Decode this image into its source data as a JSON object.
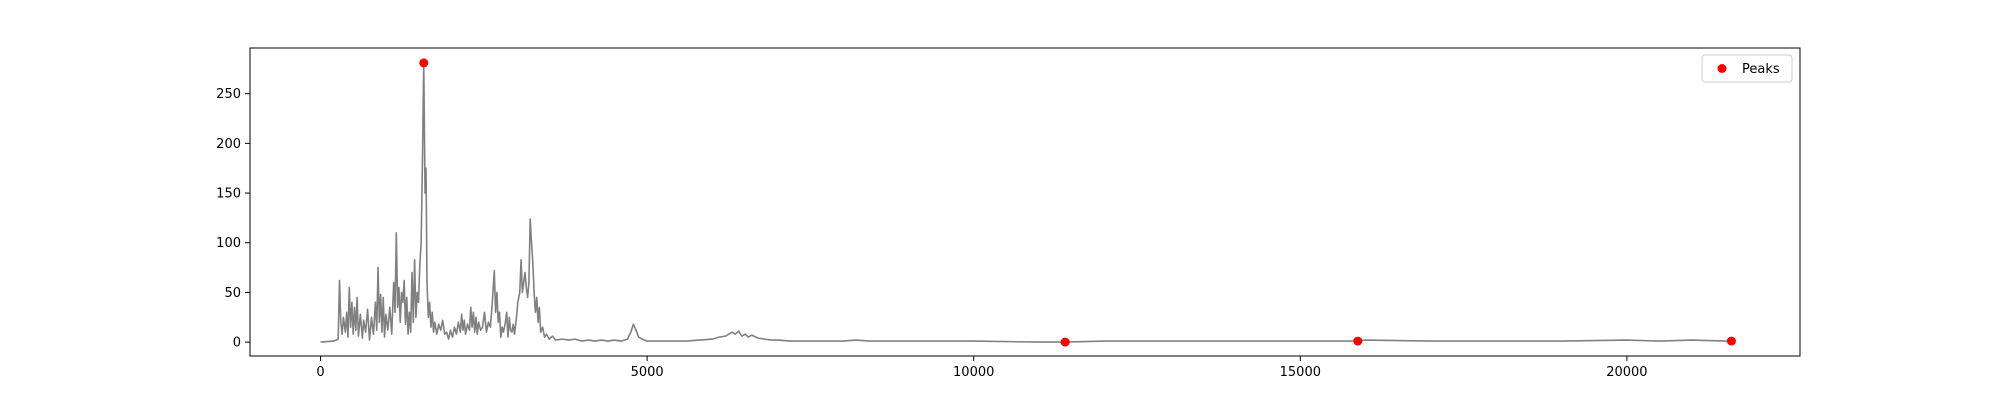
{
  "chart_data": {
    "type": "line",
    "title": "",
    "xlabel": "",
    "ylabel": "",
    "xlim": [
      -1080,
      22650
    ],
    "ylim": [
      -14,
      296
    ],
    "x_ticks": [
      {
        "value": 0,
        "label": "0"
      },
      {
        "value": 5000,
        "label": "5000"
      },
      {
        "value": 10000,
        "label": "10000"
      },
      {
        "value": 15000,
        "label": "15000"
      },
      {
        "value": 20000,
        "label": "20000"
      }
    ],
    "y_ticks": [
      {
        "value": 0,
        "label": "0"
      },
      {
        "value": 50,
        "label": "50"
      },
      {
        "value": 100,
        "label": "100"
      },
      {
        "value": 150,
        "label": "150"
      },
      {
        "value": 200,
        "label": "200"
      },
      {
        "value": 250,
        "label": "250"
      }
    ],
    "grid": false,
    "legend": {
      "position": "top-right",
      "entries": [
        "Peaks"
      ]
    },
    "series": [
      {
        "style": "line",
        "color": "#808080",
        "points": [
          [
            0,
            0
          ],
          [
            200,
            1
          ],
          [
            270,
            3
          ],
          [
            290,
            62
          ],
          [
            310,
            20
          ],
          [
            330,
            8
          ],
          [
            350,
            25
          ],
          [
            380,
            10
          ],
          [
            400,
            30
          ],
          [
            420,
            5
          ],
          [
            440,
            55
          ],
          [
            460,
            15
          ],
          [
            480,
            40
          ],
          [
            500,
            8
          ],
          [
            520,
            35
          ],
          [
            540,
            12
          ],
          [
            560,
            45
          ],
          [
            580,
            6
          ],
          [
            610,
            28
          ],
          [
            640,
            4
          ],
          [
            660,
            22
          ],
          [
            690,
            10
          ],
          [
            720,
            33
          ],
          [
            750,
            2
          ],
          [
            780,
            25
          ],
          [
            810,
            8
          ],
          [
            840,
            40
          ],
          [
            860,
            12
          ],
          [
            880,
            75
          ],
          [
            900,
            20
          ],
          [
            920,
            48
          ],
          [
            940,
            10
          ],
          [
            960,
            45
          ],
          [
            980,
            5
          ],
          [
            1000,
            28
          ],
          [
            1030,
            12
          ],
          [
            1060,
            35
          ],
          [
            1090,
            8
          ],
          [
            1120,
            60
          ],
          [
            1140,
            30
          ],
          [
            1160,
            110
          ],
          [
            1180,
            35
          ],
          [
            1200,
            55
          ],
          [
            1220,
            20
          ],
          [
            1240,
            50
          ],
          [
            1260,
            40
          ],
          [
            1280,
            62
          ],
          [
            1300,
            18
          ],
          [
            1320,
            45
          ],
          [
            1340,
            8
          ],
          [
            1360,
            30
          ],
          [
            1380,
            10
          ],
          [
            1400,
            70
          ],
          [
            1420,
            20
          ],
          [
            1440,
            83
          ],
          [
            1460,
            25
          ],
          [
            1480,
            50
          ],
          [
            1500,
            40
          ],
          [
            1520,
            78
          ],
          [
            1540,
            100
          ],
          [
            1560,
            180
          ],
          [
            1580,
            281
          ],
          [
            1600,
            150
          ],
          [
            1615,
            175
          ],
          [
            1630,
            60
          ],
          [
            1650,
            25
          ],
          [
            1670,
            40
          ],
          [
            1690,
            15
          ],
          [
            1710,
            30
          ],
          [
            1730,
            10
          ],
          [
            1750,
            20
          ],
          [
            1780,
            8
          ],
          [
            1810,
            18
          ],
          [
            1840,
            12
          ],
          [
            1870,
            22
          ],
          [
            1900,
            8
          ],
          [
            1930,
            10
          ],
          [
            1960,
            3
          ],
          [
            1990,
            12
          ],
          [
            2020,
            5
          ],
          [
            2050,
            15
          ],
          [
            2080,
            8
          ],
          [
            2110,
            20
          ],
          [
            2140,
            10
          ],
          [
            2160,
            28
          ],
          [
            2180,
            12
          ],
          [
            2200,
            22
          ],
          [
            2220,
            8
          ],
          [
            2250,
            18
          ],
          [
            2280,
            12
          ],
          [
            2300,
            35
          ],
          [
            2320,
            15
          ],
          [
            2340,
            30
          ],
          [
            2360,
            10
          ],
          [
            2380,
            25
          ],
          [
            2400,
            8
          ],
          [
            2420,
            20
          ],
          [
            2450,
            12
          ],
          [
            2480,
            15
          ],
          [
            2510,
            30
          ],
          [
            2540,
            10
          ],
          [
            2570,
            20
          ],
          [
            2600,
            15
          ],
          [
            2630,
            40
          ],
          [
            2660,
            72
          ],
          [
            2680,
            30
          ],
          [
            2700,
            50
          ],
          [
            2720,
            20
          ],
          [
            2740,
            30
          ],
          [
            2760,
            5
          ],
          [
            2780,
            15
          ],
          [
            2800,
            10
          ],
          [
            2830,
            20
          ],
          [
            2850,
            30
          ],
          [
            2870,
            5
          ],
          [
            2890,
            25
          ],
          [
            2910,
            12
          ],
          [
            2930,
            10
          ],
          [
            2950,
            18
          ],
          [
            2970,
            8
          ],
          [
            3000,
            25
          ],
          [
            3020,
            40
          ],
          [
            3050,
            50
          ],
          [
            3070,
            83
          ],
          [
            3090,
            50
          ],
          [
            3110,
            60
          ],
          [
            3130,
            70
          ],
          [
            3150,
            55
          ],
          [
            3170,
            45
          ],
          [
            3190,
            60
          ],
          [
            3210,
            124
          ],
          [
            3230,
            100
          ],
          [
            3250,
            80
          ],
          [
            3270,
            50
          ],
          [
            3290,
            30
          ],
          [
            3310,
            45
          ],
          [
            3330,
            20
          ],
          [
            3350,
            35
          ],
          [
            3370,
            10
          ],
          [
            3400,
            15
          ],
          [
            3430,
            5
          ],
          [
            3460,
            8
          ],
          [
            3500,
            3
          ],
          [
            3550,
            6
          ],
          [
            3600,
            2
          ],
          [
            3700,
            3
          ],
          [
            3800,
            2
          ],
          [
            3900,
            3
          ],
          [
            4000,
            1
          ],
          [
            4100,
            2
          ],
          [
            4200,
            1
          ],
          [
            4300,
            2
          ],
          [
            4400,
            1
          ],
          [
            4500,
            2
          ],
          [
            4600,
            1
          ],
          [
            4700,
            3
          ],
          [
            4750,
            10
          ],
          [
            4790,
            18
          ],
          [
            4830,
            12
          ],
          [
            4870,
            5
          ],
          [
            4920,
            3
          ],
          [
            5000,
            1
          ],
          [
            5200,
            1
          ],
          [
            5400,
            1
          ],
          [
            5600,
            1
          ],
          [
            5800,
            2
          ],
          [
            6000,
            3
          ],
          [
            6100,
            5
          ],
          [
            6200,
            6
          ],
          [
            6300,
            10
          ],
          [
            6350,
            8
          ],
          [
            6400,
            11
          ],
          [
            6450,
            6
          ],
          [
            6500,
            8
          ],
          [
            6550,
            5
          ],
          [
            6600,
            7
          ],
          [
            6700,
            4
          ],
          [
            6800,
            3
          ],
          [
            6900,
            2
          ],
          [
            7000,
            2
          ],
          [
            7200,
            1
          ],
          [
            7500,
            1
          ],
          [
            8000,
            1
          ],
          [
            8200,
            2
          ],
          [
            8400,
            1
          ],
          [
            9000,
            1
          ],
          [
            10000,
            1
          ],
          [
            11000,
            0
          ],
          [
            11400,
            0
          ],
          [
            12000,
            1
          ],
          [
            13000,
            1
          ],
          [
            14000,
            1
          ],
          [
            15000,
            1
          ],
          [
            15600,
            1
          ],
          [
            15880,
            1
          ],
          [
            16000,
            2
          ],
          [
            17000,
            1
          ],
          [
            18000,
            1
          ],
          [
            19000,
            1
          ],
          [
            20000,
            2
          ],
          [
            20500,
            1
          ],
          [
            21000,
            2
          ],
          [
            21500,
            1
          ],
          [
            21600,
            1
          ]
        ]
      },
      {
        "name": "Peaks",
        "style": "scatter",
        "color": "#ff0000",
        "points": [
          [
            1580,
            281
          ],
          [
            11400,
            0
          ],
          [
            15880,
            1
          ],
          [
            21600,
            1
          ]
        ]
      }
    ]
  }
}
